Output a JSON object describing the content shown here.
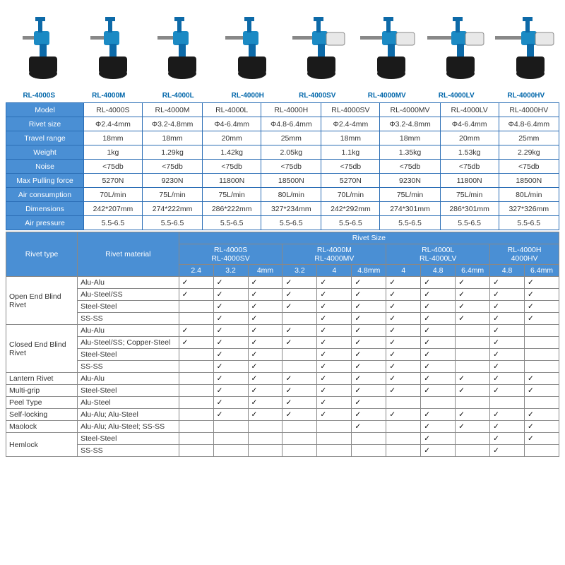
{
  "products": [
    {
      "label": "RL-4000S",
      "collector": false
    },
    {
      "label": "RL-4000M",
      "collector": false
    },
    {
      "label": "RL-4000L",
      "collector": false
    },
    {
      "label": "RL-4000H",
      "collector": false
    },
    {
      "label": "RL-4000SV",
      "collector": true
    },
    {
      "label": "RL-4000MV",
      "collector": true
    },
    {
      "label": "RL-4000LV",
      "collector": true
    },
    {
      "label": "RL-4000HV",
      "collector": true
    }
  ],
  "tool_colors": {
    "body": "#1b8ac4",
    "handle": "#0d6aa8",
    "base": "#1a1a1a",
    "collector": "#e8e8e8",
    "collector_stroke": "#888"
  },
  "spec": {
    "cols": [
      "RL-4000S",
      "RL-4000M",
      "RL-4000L",
      "RL-4000H",
      "RL-4000SV",
      "RL-4000MV",
      "RL-4000LV",
      "RL-4000HV"
    ],
    "rows": [
      {
        "h": "Model",
        "v": [
          "RL-4000S",
          "RL-4000M",
          "RL-4000L",
          "RL-4000H",
          "RL-4000SV",
          "RL-4000MV",
          "RL-4000LV",
          "RL-4000HV"
        ]
      },
      {
        "h": "Rivet size",
        "v": [
          "Φ2.4-4mm",
          "Φ3.2-4.8mm",
          "Φ4-6.4mm",
          "Φ4.8-6.4mm",
          "Φ2.4-4mm",
          "Φ3.2-4.8mm",
          "Φ4-6.4mm",
          "Φ4.8-6.4mm"
        ]
      },
      {
        "h": "Travel range",
        "v": [
          "18mm",
          "18mm",
          "20mm",
          "25mm",
          "18mm",
          "18mm",
          "20mm",
          "25mm"
        ]
      },
      {
        "h": "Weight",
        "v": [
          "1kg",
          "1.29kg",
          "1.42kg",
          "2.05kg",
          "1.1kg",
          "1.35kg",
          "1.53kg",
          "2.29kg"
        ]
      },
      {
        "h": "Noise",
        "v": [
          "<75db",
          "<75db",
          "<75db",
          "<75db",
          "<75db",
          "<75db",
          "<75db",
          "<75db"
        ]
      },
      {
        "h": "Max Pulling force",
        "v": [
          "5270N",
          "9230N",
          "11800N",
          "18500N",
          "5270N",
          "9230N",
          "11800N",
          "18500N"
        ]
      },
      {
        "h": "Air consumption",
        "v": [
          "70L/min",
          "75L/min",
          "75L/min",
          "80L/min",
          "70L/min",
          "75L/min",
          "75L/min",
          "80L/min"
        ]
      },
      {
        "h": "Dimensions",
        "v": [
          "242*207mm",
          "274*222mm",
          "286*222mm",
          "327*234mm",
          "242*292mm",
          "274*301mm",
          "286*301mm",
          "327*326mm"
        ]
      },
      {
        "h": "Air pressure",
        "v": [
          "5.5-6.5",
          "5.5-6.5",
          "5.5-6.5",
          "5.5-6.5",
          "5.5-6.5",
          "5.5-6.5",
          "5.5-6.5",
          "5.5-6.5"
        ]
      }
    ]
  },
  "rivet_header": {
    "title": "Rivet Size",
    "type_h": "Rivet type",
    "mat_h": "Rivet material",
    "groups": [
      {
        "models": [
          "RL-4000S",
          "RL-4000SV"
        ],
        "sizes": [
          "2.4",
          "3.2",
          "4mm"
        ]
      },
      {
        "models": [
          "RL-4000M",
          "RL-4000MV"
        ],
        "sizes": [
          "3.2",
          "4",
          "4.8mm"
        ]
      },
      {
        "models": [
          "RL-4000L",
          "RL-4000LV"
        ],
        "sizes": [
          "4",
          "4.8",
          "6.4mm"
        ]
      },
      {
        "models": [
          "RL-4000H",
          "4000HV"
        ],
        "sizes": [
          "4.8",
          "6.4mm"
        ]
      }
    ]
  },
  "rivet_rows": [
    {
      "type": "Open End Blind Rivet",
      "mats": [
        {
          "m": "Alu-Alu",
          "c": [
            1,
            1,
            1,
            1,
            1,
            1,
            1,
            1,
            1,
            1,
            1
          ]
        },
        {
          "m": "Alu-Steel/SS",
          "c": [
            1,
            1,
            1,
            1,
            1,
            1,
            1,
            1,
            1,
            1,
            1
          ]
        },
        {
          "m": "Steel-Steel",
          "c": [
            0,
            1,
            1,
            1,
            1,
            1,
            1,
            1,
            1,
            1,
            1
          ]
        },
        {
          "m": "SS-SS",
          "c": [
            0,
            1,
            1,
            0,
            1,
            1,
            1,
            1,
            1,
            1,
            1
          ]
        }
      ]
    },
    {
      "type": "Closed End Blind Rivet",
      "mats": [
        {
          "m": "Alu-Alu",
          "c": [
            1,
            1,
            1,
            1,
            1,
            1,
            1,
            1,
            0,
            1,
            0
          ]
        },
        {
          "m": "Alu-Steel/SS; Copper-Steel",
          "c": [
            1,
            1,
            1,
            1,
            1,
            1,
            1,
            1,
            0,
            1,
            0
          ]
        },
        {
          "m": "Steel-Steel",
          "c": [
            0,
            1,
            1,
            0,
            1,
            1,
            1,
            1,
            0,
            1,
            0
          ]
        },
        {
          "m": "SS-SS",
          "c": [
            0,
            1,
            1,
            0,
            1,
            1,
            1,
            1,
            0,
            1,
            0
          ]
        }
      ]
    },
    {
      "type": "Lantern Rivet",
      "mats": [
        {
          "m": "Alu-Alu",
          "c": [
            0,
            1,
            1,
            1,
            1,
            1,
            1,
            1,
            1,
            1,
            1
          ]
        }
      ]
    },
    {
      "type": "Multi-grip",
      "mats": [
        {
          "m": "Steel-Steel",
          "c": [
            0,
            1,
            1,
            1,
            1,
            1,
            1,
            1,
            1,
            1,
            1
          ]
        }
      ]
    },
    {
      "type": "Peel Type",
      "mats": [
        {
          "m": "Alu-Steel",
          "c": [
            0,
            1,
            1,
            1,
            1,
            1,
            0,
            0,
            0,
            0,
            0
          ]
        }
      ]
    },
    {
      "type": "Self-locking",
      "mats": [
        {
          "m": "Alu-Alu; Alu-Steel",
          "c": [
            0,
            1,
            1,
            1,
            1,
            1,
            1,
            1,
            1,
            1,
            1
          ]
        }
      ]
    },
    {
      "type": "Maolock",
      "mats": [
        {
          "m": "Alu-Alu; Alu-Steel; SS-SS",
          "c": [
            0,
            0,
            0,
            0,
            0,
            1,
            0,
            1,
            1,
            1,
            1
          ]
        }
      ]
    },
    {
      "type": "Hemlock",
      "mats": [
        {
          "m": "Steel-Steel",
          "c": [
            0,
            0,
            0,
            0,
            0,
            0,
            0,
            1,
            0,
            1,
            1
          ]
        },
        {
          "m": "SS-SS",
          "c": [
            0,
            0,
            0,
            0,
            0,
            0,
            0,
            1,
            0,
            1,
            0
          ]
        }
      ]
    }
  ]
}
